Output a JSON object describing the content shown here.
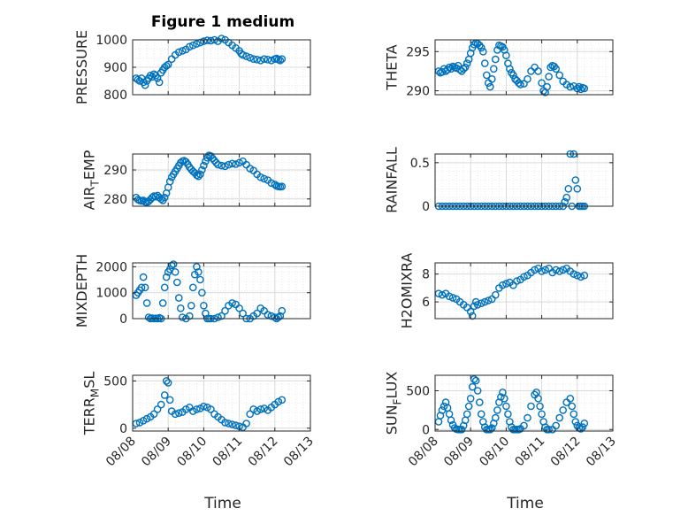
{
  "figure_title": "Figure 1 medium",
  "colors": {
    "marker": "#0072BD",
    "axis": "#262626",
    "grid": "#d9d9d9"
  },
  "chart_data": [
    {
      "type": "scatter",
      "ylabel": "PRESSURE",
      "ylim": [
        800,
        1000
      ],
      "yticks": [
        {
          "v": 800,
          "label": "800"
        },
        {
          "v": 900,
          "label": "900"
        },
        {
          "v": 1000,
          "label": "1000"
        }
      ],
      "xlim": [
        0,
        5
      ],
      "xtick_labels": [
        "08/08",
        "08/09",
        "08/10",
        "08/11",
        "08/12",
        "08/13"
      ],
      "show_xtick_labels": false,
      "x": [
        0.1,
        0.15,
        0.2,
        0.25,
        0.3,
        0.35,
        0.4,
        0.45,
        0.5,
        0.55,
        0.6,
        0.65,
        0.7,
        0.75,
        0.8,
        0.85,
        0.9,
        0.95,
        1.0,
        1.1,
        1.2,
        1.3,
        1.4,
        1.5,
        1.6,
        1.7,
        1.8,
        1.9,
        2.0,
        2.1,
        2.2,
        2.3,
        2.4,
        2.5,
        2.6,
        2.7,
        2.8,
        2.9,
        3.0,
        3.05,
        3.1,
        3.2,
        3.3,
        3.4,
        3.5,
        3.6,
        3.7,
        3.8,
        3.9,
        4.0,
        4.05,
        4.1,
        4.15,
        4.2
      ],
      "y": [
        860,
        855,
        850,
        860,
        845,
        835,
        850,
        860,
        870,
        865,
        875,
        870,
        860,
        845,
        880,
        890,
        900,
        905,
        910,
        930,
        945,
        955,
        960,
        965,
        975,
        980,
        985,
        990,
        995,
        998,
        997,
        1000,
        995,
        1005,
        1000,
        990,
        980,
        970,
        960,
        950,
        945,
        940,
        935,
        930,
        928,
        925,
        930,
        928,
        925,
        930,
        932,
        928,
        925,
        930
      ],
      "grid": true
    },
    {
      "type": "scatter",
      "ylabel": "THETA",
      "ylim": [
        289.5,
        296.5
      ],
      "yticks": [
        {
          "v": 290,
          "label": "290"
        },
        {
          "v": 295,
          "label": "295"
        }
      ],
      "xlim": [
        0,
        5
      ],
      "xtick_labels": [
        "08/08",
        "08/09",
        "08/10",
        "08/11",
        "08/12",
        "08/13"
      ],
      "show_xtick_labels": false,
      "x": [
        0.1,
        0.15,
        0.2,
        0.25,
        0.3,
        0.35,
        0.4,
        0.45,
        0.5,
        0.55,
        0.6,
        0.65,
        0.7,
        0.75,
        0.8,
        0.85,
        0.9,
        0.95,
        1.0,
        1.05,
        1.1,
        1.15,
        1.2,
        1.25,
        1.3,
        1.35,
        1.4,
        1.45,
        1.5,
        1.55,
        1.6,
        1.65,
        1.7,
        1.75,
        1.8,
        1.85,
        1.9,
        1.95,
        2.0,
        2.05,
        2.1,
        2.15,
        2.2,
        2.25,
        2.3,
        2.35,
        2.4,
        2.5,
        2.6,
        2.7,
        2.8,
        2.9,
        3.0,
        3.05,
        3.1,
        3.15,
        3.2,
        3.25,
        3.3,
        3.35,
        3.4,
        3.5,
        3.6,
        3.7,
        3.8,
        3.9,
        4.0,
        4.05,
        4.1,
        4.15,
        4.2
      ],
      "y": [
        292.5,
        292.3,
        292.4,
        292.8,
        292.5,
        292.7,
        293.0,
        292.8,
        293.1,
        293.0,
        292.9,
        293.2,
        292.7,
        292.5,
        292.8,
        293.0,
        293.5,
        294.0,
        294.8,
        295.5,
        295.9,
        296.1,
        296.0,
        295.8,
        295.5,
        295.0,
        293.5,
        292.0,
        291.0,
        290.5,
        291.5,
        292.8,
        294.0,
        295.2,
        295.8,
        295.7,
        295.6,
        295.2,
        294.5,
        293.5,
        292.8,
        292.3,
        292.0,
        291.5,
        291.3,
        291.0,
        290.8,
        290.9,
        291.5,
        292.5,
        293.0,
        292.5,
        291.0,
        290.0,
        289.8,
        290.5,
        291.8,
        293.0,
        293.2,
        293.1,
        292.8,
        292.0,
        291.2,
        290.8,
        290.5,
        290.6,
        290.3,
        290.5,
        290.2,
        290.4,
        290.3
      ],
      "grid": true
    },
    {
      "type": "scatter",
      "ylabel": "AIR",
      "ylabel_sub": "T",
      "ylabel_rest": "EMP",
      "ylim": [
        277.5,
        295.5
      ],
      "yticks": [
        {
          "v": 280,
          "label": "280"
        },
        {
          "v": 290,
          "label": "290"
        }
      ],
      "xlim": [
        0,
        5
      ],
      "xtick_labels": [
        "08/08",
        "08/09",
        "08/10",
        "08/11",
        "08/12",
        "08/13"
      ],
      "show_xtick_labels": false,
      "x": [
        0.1,
        0.15,
        0.2,
        0.25,
        0.3,
        0.35,
        0.4,
        0.45,
        0.5,
        0.55,
        0.6,
        0.65,
        0.7,
        0.75,
        0.8,
        0.85,
        0.9,
        0.95,
        1.0,
        1.05,
        1.1,
        1.15,
        1.2,
        1.25,
        1.3,
        1.35,
        1.4,
        1.45,
        1.5,
        1.55,
        1.6,
        1.65,
        1.7,
        1.75,
        1.8,
        1.85,
        1.9,
        1.95,
        2.0,
        2.05,
        2.1,
        2.15,
        2.2,
        2.25,
        2.3,
        2.35,
        2.4,
        2.5,
        2.6,
        2.7,
        2.8,
        2.9,
        3.0,
        3.1,
        3.2,
        3.3,
        3.4,
        3.5,
        3.6,
        3.7,
        3.8,
        3.9,
        4.0,
        4.05,
        4.1,
        4.15,
        4.2
      ],
      "y": [
        280.5,
        279.8,
        279.5,
        279.3,
        279.5,
        279.0,
        278.8,
        279.2,
        279.8,
        280.5,
        281.0,
        280.8,
        281.2,
        280.5,
        280.0,
        279.5,
        280.5,
        282.0,
        284.0,
        286.0,
        287.5,
        288.5,
        289.5,
        290.5,
        291.5,
        292.5,
        293.0,
        293.2,
        292.8,
        292.0,
        291.0,
        290.2,
        289.5,
        289.0,
        288.2,
        287.8,
        288.5,
        290.0,
        291.5,
        293.0,
        294.2,
        295.0,
        294.8,
        294.0,
        293.2,
        292.5,
        291.8,
        291.5,
        291.3,
        291.8,
        292.2,
        292.0,
        292.5,
        293.0,
        291.8,
        290.5,
        289.8,
        288.5,
        287.5,
        287.0,
        286.5,
        285.5,
        285.0,
        284.5,
        284.3,
        284.2,
        284.3
      ],
      "grid": true
    },
    {
      "type": "scatter",
      "ylabel": "RAINFALL",
      "ylim": [
        0,
        0.6
      ],
      "yticks": [
        {
          "v": 0,
          "label": "0"
        },
        {
          "v": 0.5,
          "label": "0.5"
        }
      ],
      "xlim": [
        0,
        5
      ],
      "xtick_labels": [
        "08/08",
        "08/09",
        "08/10",
        "08/11",
        "08/12",
        "08/13"
      ],
      "show_xtick_labels": false,
      "x": [
        0.1,
        0.2,
        0.3,
        0.4,
        0.5,
        0.6,
        0.7,
        0.8,
        0.9,
        1.0,
        1.1,
        1.2,
        1.3,
        1.4,
        1.5,
        1.6,
        1.7,
        1.8,
        1.9,
        2.0,
        2.1,
        2.2,
        2.3,
        2.4,
        2.5,
        2.6,
        2.7,
        2.8,
        2.9,
        3.0,
        3.1,
        3.2,
        3.3,
        3.4,
        3.5,
        3.6,
        3.65,
        3.7,
        3.75,
        3.8,
        3.85,
        3.9,
        3.95,
        4.0,
        4.05,
        4.1,
        4.15,
        4.2
      ],
      "y": [
        0,
        0,
        0,
        0,
        0,
        0,
        0,
        0,
        0,
        0,
        0,
        0,
        0,
        0,
        0,
        0,
        0,
        0,
        0,
        0,
        0,
        0,
        0,
        0,
        0,
        0,
        0,
        0,
        0,
        0,
        0,
        0,
        0,
        0,
        0,
        0,
        0.05,
        0.1,
        0.2,
        0.6,
        0.0,
        0.6,
        0.3,
        0.2,
        0.0,
        0.0,
        0.0,
        0.0
      ],
      "grid": true
    },
    {
      "type": "scatter",
      "ylabel": "MIXDEPTH",
      "ylim": [
        0,
        2150
      ],
      "yticks": [
        {
          "v": 0,
          "label": "0"
        },
        {
          "v": 1000,
          "label": "1000"
        },
        {
          "v": 2000,
          "label": "2000"
        }
      ],
      "xlim": [
        0,
        5
      ],
      "xtick_labels": [
        "08/08",
        "08/09",
        "08/10",
        "08/11",
        "08/12",
        "08/13"
      ],
      "show_xtick_labels": false,
      "x": [
        0.1,
        0.15,
        0.2,
        0.25,
        0.3,
        0.35,
        0.4,
        0.45,
        0.5,
        0.55,
        0.6,
        0.65,
        0.7,
        0.75,
        0.8,
        0.85,
        0.9,
        0.95,
        1.0,
        1.05,
        1.1,
        1.15,
        1.2,
        1.25,
        1.3,
        1.35,
        1.4,
        1.5,
        1.6,
        1.65,
        1.7,
        1.75,
        1.8,
        1.85,
        1.9,
        1.95,
        2.0,
        2.05,
        2.1,
        2.15,
        2.2,
        2.3,
        2.4,
        2.5,
        2.6,
        2.7,
        2.8,
        2.9,
        3.0,
        3.1,
        3.2,
        3.3,
        3.4,
        3.5,
        3.6,
        3.7,
        3.8,
        3.9,
        4.0,
        4.05,
        4.1,
        4.15,
        4.2
      ],
      "y": [
        900,
        1000,
        1100,
        1200,
        1600,
        1200,
        600,
        50,
        0,
        20,
        0,
        10,
        0,
        30,
        0,
        600,
        1200,
        1600,
        1800,
        1900,
        2050,
        2100,
        1800,
        1400,
        800,
        400,
        50,
        0,
        100,
        500,
        1200,
        1700,
        2000,
        1800,
        1500,
        1000,
        500,
        200,
        0,
        0,
        0,
        0,
        50,
        100,
        300,
        500,
        600,
        550,
        400,
        200,
        0,
        0,
        100,
        200,
        400,
        300,
        150,
        100,
        50,
        0,
        50,
        100,
        300
      ],
      "grid": true
    },
    {
      "type": "scatter",
      "ylabel": "H2OMIXRA",
      "ylim": [
        4.8,
        8.8
      ],
      "yticks": [
        {
          "v": 6,
          "label": "6"
        },
        {
          "v": 8,
          "label": "8"
        }
      ],
      "xlim": [
        0,
        5
      ],
      "xtick_labels": [
        "08/08",
        "08/09",
        "08/10",
        "08/11",
        "08/12",
        "08/13"
      ],
      "show_xtick_labels": false,
      "x": [
        0.1,
        0.2,
        0.3,
        0.4,
        0.5,
        0.6,
        0.7,
        0.8,
        0.9,
        1.0,
        1.05,
        1.1,
        1.15,
        1.2,
        1.3,
        1.4,
        1.5,
        1.6,
        1.7,
        1.8,
        1.9,
        2.0,
        2.1,
        2.2,
        2.3,
        2.4,
        2.5,
        2.6,
        2.7,
        2.8,
        2.9,
        3.0,
        3.1,
        3.2,
        3.3,
        3.4,
        3.5,
        3.6,
        3.7,
        3.8,
        3.9,
        4.0,
        4.1,
        4.2
      ],
      "y": [
        6.6,
        6.5,
        6.6,
        6.4,
        6.3,
        6.2,
        6.0,
        5.8,
        5.6,
        5.3,
        5.0,
        5.7,
        6.0,
        5.8,
        5.9,
        6.0,
        6.1,
        6.2,
        6.5,
        7.0,
        7.2,
        7.3,
        7.4,
        7.2,
        7.5,
        7.6,
        7.8,
        7.9,
        8.1,
        8.3,
        8.4,
        8.2,
        8.3,
        8.4,
        8.1,
        8.3,
        8.2,
        8.3,
        8.4,
        8.2,
        8.0,
        7.9,
        7.8,
        7.9
      ],
      "grid": true
    },
    {
      "type": "scatter",
      "ylabel": "TERR",
      "ylabel_sub": "M",
      "ylabel_rest": "SL",
      "ylim": [
        -30,
        560
      ],
      "yticks": [
        {
          "v": 0,
          "label": "0"
        },
        {
          "v": 500,
          "label": "500"
        }
      ],
      "xlim": [
        0,
        5
      ],
      "xtick_labels": [
        "08/08",
        "08/09",
        "08/10",
        "08/11",
        "08/12",
        "08/13"
      ],
      "show_xtick_labels": true,
      "x": [
        0.1,
        0.2,
        0.3,
        0.4,
        0.5,
        0.6,
        0.7,
        0.8,
        0.9,
        0.95,
        1.0,
        1.05,
        1.1,
        1.2,
        1.3,
        1.4,
        1.5,
        1.6,
        1.7,
        1.8,
        1.9,
        2.0,
        2.1,
        2.2,
        2.3,
        2.4,
        2.5,
        2.6,
        2.7,
        2.8,
        2.9,
        3.0,
        3.1,
        3.2,
        3.3,
        3.4,
        3.5,
        3.6,
        3.7,
        3.8,
        3.9,
        4.0,
        4.1,
        4.2
      ],
      "y": [
        50,
        60,
        80,
        100,
        120,
        150,
        200,
        250,
        350,
        500,
        480,
        300,
        180,
        150,
        160,
        170,
        200,
        220,
        180,
        200,
        210,
        230,
        220,
        200,
        150,
        120,
        90,
        60,
        50,
        40,
        30,
        20,
        10,
        50,
        150,
        200,
        180,
        200,
        210,
        190,
        220,
        250,
        280,
        300
      ],
      "grid": true
    },
    {
      "type": "scatter",
      "ylabel": "SUN",
      "ylabel_sub": "F",
      "ylabel_rest": "LUX",
      "ylim": [
        -20,
        700
      ],
      "yticks": [
        {
          "v": 0,
          "label": "0"
        },
        {
          "v": 500,
          "label": "500"
        }
      ],
      "xlim": [
        0,
        5
      ],
      "xtick_labels": [
        "08/08",
        "08/09",
        "08/10",
        "08/11",
        "08/12",
        "08/13"
      ],
      "show_xtick_labels": true,
      "x": [
        0.1,
        0.15,
        0.2,
        0.25,
        0.3,
        0.35,
        0.4,
        0.45,
        0.5,
        0.55,
        0.6,
        0.65,
        0.7,
        0.75,
        0.8,
        0.85,
        0.9,
        0.95,
        1.0,
        1.05,
        1.1,
        1.15,
        1.2,
        1.25,
        1.3,
        1.35,
        1.4,
        1.45,
        1.5,
        1.55,
        1.6,
        1.65,
        1.7,
        1.75,
        1.8,
        1.85,
        1.9,
        1.95,
        2.0,
        2.05,
        2.1,
        2.15,
        2.2,
        2.25,
        2.3,
        2.35,
        2.4,
        2.5,
        2.6,
        2.7,
        2.8,
        2.85,
        2.9,
        2.95,
        3.0,
        3.05,
        3.1,
        3.15,
        3.2,
        3.3,
        3.4,
        3.5,
        3.6,
        3.7,
        3.8,
        3.85,
        3.9,
        3.95,
        4.0,
        4.05,
        4.1,
        4.15,
        4.2
      ],
      "y": [
        100,
        180,
        250,
        300,
        350,
        280,
        200,
        120,
        60,
        20,
        5,
        0,
        0,
        0,
        50,
        120,
        200,
        300,
        400,
        550,
        650,
        630,
        500,
        350,
        200,
        100,
        30,
        0,
        0,
        0,
        20,
        80,
        150,
        250,
        350,
        420,
        480,
        400,
        300,
        200,
        100,
        30,
        0,
        0,
        0,
        0,
        10,
        50,
        150,
        300,
        450,
        480,
        400,
        300,
        200,
        100,
        30,
        0,
        0,
        0,
        50,
        150,
        250,
        350,
        400,
        300,
        200,
        100,
        50,
        20,
        10,
        30,
        80
      ],
      "grid": true
    }
  ],
  "xlabel": "Time"
}
